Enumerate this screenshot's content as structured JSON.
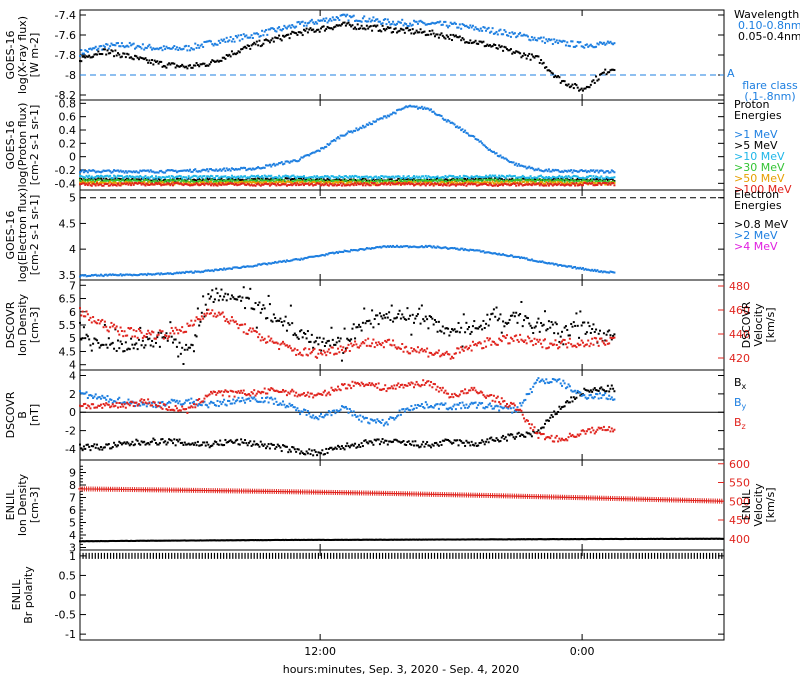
{
  "colors": {
    "black": "#000000",
    "blue": "#1e7fe0",
    "cyan": "#1fb6e8",
    "green": "#34c434",
    "orange": "#e69f00",
    "red": "#e0241e",
    "magenta": "#e020e0",
    "dashed_blue": "#1e7fe0"
  },
  "xaxis": {
    "label": "hours:minutes, Sep.  3, 2020 - Sep.  4, 2020",
    "ticks": [
      {
        "hour": 12,
        "label": "12:00"
      },
      {
        "hour": 24,
        "label": "0:00"
      }
    ],
    "range_hours": [
      1,
      30.5
    ],
    "data_end_hour": 25.5
  },
  "chart_data": [
    {
      "id": "xray",
      "type": "scatter",
      "ylabel": [
        "GOES-16",
        "log(X-ray flux)",
        "[W m-2]"
      ],
      "ylim": [
        -8.25,
        -7.35
      ],
      "yticks": [
        -7.4,
        -7.6,
        -7.8,
        -8.0,
        -8.2
      ],
      "ref_line": {
        "y": -8.0,
        "label": "A",
        "note": [
          "flare class",
          "(.1-.8nm)"
        ]
      },
      "legend_title": [
        "Wavelength"
      ],
      "series": [
        {
          "name": "0.10-0.8nm",
          "color": "blue",
          "x": [
            1,
            2,
            3,
            4,
            5,
            6,
            7,
            8,
            9,
            10,
            11,
            12,
            13,
            14,
            15,
            16,
            17,
            18,
            19,
            20,
            21,
            22,
            23,
            24,
            25,
            25.5
          ],
          "y": [
            -7.78,
            -7.72,
            -7.7,
            -7.72,
            -7.74,
            -7.73,
            -7.68,
            -7.64,
            -7.6,
            -7.55,
            -7.5,
            -7.46,
            -7.42,
            -7.44,
            -7.47,
            -7.48,
            -7.49,
            -7.5,
            -7.53,
            -7.56,
            -7.6,
            -7.64,
            -7.68,
            -7.7,
            -7.69,
            -7.7
          ]
        },
        {
          "name": "0.05-0.4nm",
          "color": "black",
          "x": [
            1,
            2,
            3,
            4,
            5,
            6,
            7,
            8,
            9,
            10,
            11,
            12,
            13,
            14,
            15,
            16,
            17,
            18,
            19,
            20,
            21,
            22,
            23,
            24,
            25,
            25.5
          ],
          "y": [
            -7.84,
            -7.76,
            -7.8,
            -7.86,
            -7.9,
            -7.92,
            -7.88,
            -7.78,
            -7.7,
            -7.64,
            -7.58,
            -7.54,
            -7.5,
            -7.52,
            -7.54,
            -7.56,
            -7.58,
            -7.62,
            -7.66,
            -7.72,
            -7.78,
            -7.84,
            -8.05,
            -8.15,
            -7.98,
            -7.92
          ]
        }
      ]
    },
    {
      "id": "proton",
      "type": "scatter",
      "ylabel": [
        "GOES-16",
        "log(Proton flux)",
        "[cm-2 s-1 sr-1]"
      ],
      "ylim": [
        -0.5,
        0.85
      ],
      "yticks": [
        0.8,
        0.6,
        0.4,
        0.2,
        0.0,
        -0.2,
        -0.4
      ],
      "legend_title": [
        "Proton",
        "Energies"
      ],
      "series": [
        {
          "name": ">1 MeV",
          "color": "blue",
          "x": [
            1,
            3,
            5,
            7,
            9,
            11,
            12,
            13,
            14,
            15,
            16,
            17,
            18,
            19,
            20,
            21,
            22,
            23,
            25.5
          ],
          "y": [
            -0.22,
            -0.22,
            -0.22,
            -0.2,
            -0.18,
            -0.05,
            0.1,
            0.32,
            0.45,
            0.6,
            0.75,
            0.72,
            0.5,
            0.3,
            0.05,
            -0.12,
            -0.2,
            -0.22,
            -0.22
          ]
        },
        {
          "name": ">5 MeV",
          "color": "black",
          "x": [
            1,
            5,
            10,
            15,
            20,
            25.5
          ],
          "y": [
            -0.34,
            -0.35,
            -0.34,
            -0.35,
            -0.34,
            -0.35
          ]
        },
        {
          "name": ">10 MeV",
          "color": "cyan",
          "x": [
            1,
            5,
            10,
            15,
            20,
            25.5
          ],
          "y": [
            -0.3,
            -0.31,
            -0.3,
            -0.31,
            -0.3,
            -0.31
          ]
        },
        {
          "name": ">30 MeV",
          "color": "green",
          "x": [
            1,
            5,
            10,
            15,
            20,
            25.5
          ],
          "y": [
            -0.36,
            -0.37,
            -0.36,
            -0.37,
            -0.36,
            -0.37
          ]
        },
        {
          "name": ">50 MeV",
          "color": "orange",
          "x": [
            1,
            5,
            10,
            15,
            20,
            25.5
          ],
          "y": [
            -0.39,
            -0.4,
            -0.39,
            -0.4,
            -0.39,
            -0.4
          ]
        },
        {
          "name": ">100 MeV",
          "color": "red",
          "x": [
            1,
            5,
            10,
            15,
            20,
            25.5
          ],
          "y": [
            -0.42,
            -0.41,
            -0.42,
            -0.41,
            -0.42,
            -0.41
          ]
        }
      ]
    },
    {
      "id": "electron",
      "type": "scatter",
      "ylabel": [
        "GOES-16",
        "log(Electron flux)",
        "[cm-2 s-1 sr-1]"
      ],
      "ylim": [
        3.4,
        5.15
      ],
      "yticks": [
        5.0,
        4.5,
        4.0,
        3.5
      ],
      "ref_line": {
        "y": 5.0
      },
      "legend_title": [
        "Electron",
        "Energies"
      ],
      "series": [
        {
          "name": ">0.8 MeV",
          "color": "black",
          "x": [],
          "y": []
        },
        {
          "name": ">2 MeV",
          "color": "blue",
          "x": [
            1,
            3,
            5,
            7,
            9,
            11,
            13,
            15,
            17,
            19,
            21,
            23,
            25,
            25.5
          ],
          "y": [
            3.48,
            3.5,
            3.52,
            3.58,
            3.68,
            3.8,
            3.95,
            4.05,
            4.05,
            3.98,
            3.85,
            3.68,
            3.56,
            3.55
          ]
        },
        {
          "name": ">4 MeV",
          "color": "magenta",
          "x": [],
          "y": []
        }
      ]
    },
    {
      "id": "dscovr_density",
      "type": "scatter",
      "ylabel": [
        "DSCOVR",
        "Ion Density",
        "[cm-3]"
      ],
      "ylabel_right": [
        "DSCOVR",
        "Velocity",
        "[km/s]"
      ],
      "ylim": [
        3.8,
        7.2
      ],
      "yticks": [
        7.0,
        6.5,
        6.0,
        5.5,
        5.0,
        4.5,
        4.0
      ],
      "ylim_right": [
        410,
        485
      ],
      "yticks_right": [
        480,
        460,
        440,
        420
      ],
      "series": [
        {
          "name": "Ion Density",
          "color": "black",
          "axis": "left",
          "x": [
            1,
            2,
            3,
            4,
            5,
            6,
            7,
            8,
            9,
            10,
            11,
            12,
            13,
            14,
            15,
            16,
            17,
            18,
            19,
            20,
            21,
            22,
            23,
            24,
            25,
            25.5
          ],
          "y": [
            5.1,
            4.8,
            4.7,
            4.9,
            5.0,
            4.6,
            6.7,
            6.5,
            6.2,
            5.8,
            5.2,
            5.0,
            4.8,
            5.5,
            5.8,
            5.9,
            5.6,
            5.3,
            5.4,
            5.8,
            5.7,
            5.5,
            5.3,
            5.4,
            5.2,
            5.1
          ]
        },
        {
          "name": "Velocity",
          "color": "red",
          "axis": "right",
          "x": [
            1,
            2,
            3,
            4,
            5,
            6,
            7,
            8,
            9,
            10,
            11,
            12,
            13,
            14,
            15,
            16,
            17,
            18,
            19,
            20,
            21,
            22,
            23,
            24,
            25,
            25.5
          ],
          "y": [
            458,
            448,
            442,
            440,
            440,
            446,
            460,
            450,
            440,
            432,
            425,
            424,
            428,
            433,
            432,
            428,
            425,
            422,
            430,
            434,
            436,
            432,
            432,
            433,
            434,
            436
          ]
        }
      ]
    },
    {
      "id": "dscovr_b",
      "type": "scatter",
      "ylabel": [
        "DSCOVR",
        "B",
        "[nT]"
      ],
      "ylim": [
        -5.2,
        4.6
      ],
      "yticks": [
        4,
        2,
        0,
        -2,
        -4
      ],
      "zero_line": true,
      "series": [
        {
          "name": "Bx",
          "color": "black",
          "x": [
            1,
            2,
            3,
            4,
            5,
            6,
            7,
            8,
            9,
            10,
            11,
            12,
            13,
            14,
            15,
            16,
            17,
            18,
            19,
            20,
            21,
            22,
            23,
            24,
            25,
            25.5
          ],
          "y": [
            -3.8,
            -3.8,
            -3.5,
            -3.2,
            -3.2,
            -3.4,
            -3.5,
            -3.2,
            -3.4,
            -3.8,
            -4.2,
            -4.5,
            -3.8,
            -3.4,
            -3.2,
            -3.4,
            -3.6,
            -3.2,
            -3.5,
            -3.0,
            -2.6,
            -2.2,
            0.5,
            2.2,
            2.5,
            2.6
          ]
        },
        {
          "name": "By",
          "color": "blue",
          "x": [
            1,
            2,
            3,
            4,
            5,
            6,
            7,
            8,
            9,
            10,
            11,
            12,
            13,
            14,
            15,
            16,
            17,
            18,
            19,
            20,
            21,
            22,
            23,
            24,
            25,
            25.5
          ],
          "y": [
            2.0,
            1.5,
            1.2,
            0.8,
            1.0,
            1.2,
            0.8,
            1.2,
            1.5,
            1.2,
            0.2,
            -0.5,
            0.5,
            -0.8,
            -1.2,
            0.5,
            0.8,
            0.6,
            0.8,
            0.6,
            0.2,
            3.5,
            3.3,
            1.8,
            1.8,
            1.5
          ]
        },
        {
          "name": "Bz",
          "color": "red",
          "x": [
            1,
            2,
            3,
            4,
            5,
            6,
            7,
            8,
            9,
            10,
            11,
            12,
            13,
            14,
            15,
            16,
            17,
            18,
            19,
            20,
            21,
            22,
            23,
            24,
            25,
            25.5
          ],
          "y": [
            0.8,
            0.6,
            0.8,
            1.2,
            0.5,
            0.2,
            2.2,
            2.0,
            2.1,
            2.4,
            2.0,
            1.8,
            2.8,
            3.2,
            2.6,
            3.0,
            3.2,
            1.8,
            2.4,
            1.5,
            0.5,
            -2.5,
            -3.0,
            -2.2,
            -1.8,
            -1.8
          ]
        }
      ]
    },
    {
      "id": "enlil_density",
      "type": "scatter",
      "ylabel": [
        "ENLIL",
        "Ion Density",
        "[cm-3]"
      ],
      "ylabel_right": [
        "ENLIL",
        "Velocity",
        "[km/s]"
      ],
      "ylim": [
        2.8,
        10
      ],
      "yticks": [
        9,
        8,
        7,
        6,
        5,
        4,
        3
      ],
      "ylim_right": [
        370,
        610
      ],
      "yticks_right": [
        600,
        550,
        500,
        450,
        400
      ],
      "series": [
        {
          "name": "Ion Density",
          "color": "black",
          "axis": "left",
          "x": [
            1,
            5,
            10,
            15,
            20,
            25,
            30.5
          ],
          "y": [
            3.5,
            3.55,
            3.6,
            3.62,
            3.65,
            3.68,
            3.7
          ]
        },
        {
          "name": "Velocity",
          "color": "red",
          "axis": "right",
          "x": [
            1,
            5,
            10,
            15,
            20,
            25,
            30.5
          ],
          "y": [
            533,
            530,
            526,
            521,
            515,
            508,
            500
          ]
        }
      ]
    },
    {
      "id": "enlil_polarity",
      "type": "scatter",
      "ylabel": [
        "ENLIL",
        "Br polarity"
      ],
      "ylim": [
        -1.15,
        1.15
      ],
      "yticks": [
        1.0,
        0.5,
        0.0,
        -0.5,
        -1.0
      ],
      "series": [
        {
          "name": "Br polarity",
          "color": "black",
          "x": [
            1,
            30.5
          ],
          "y": [
            1.0,
            1.0
          ]
        }
      ]
    }
  ]
}
